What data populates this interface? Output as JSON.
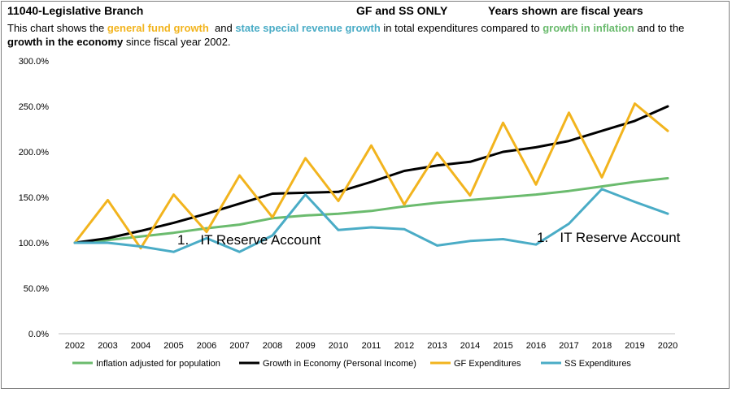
{
  "header": {
    "title": "11040-Legislative Branch",
    "scope": "GF and SS ONLY",
    "note": "Years shown are fiscal years"
  },
  "description": {
    "p1": "This chart shows the ",
    "gf": "general fund growth",
    "p2": "  and ",
    "ss": "state special revenue growth",
    "p3": " in total expenditures compared to ",
    "infl": "growth in inflation",
    "p4": " and to the ",
    "econ": "growth in the economy",
    "p5": " since fiscal year 2002."
  },
  "colors": {
    "gf": "#F2B41E",
    "ss": "#4AACC6",
    "inflation": "#6BBB6E",
    "economy": "#000000"
  },
  "chart_data": {
    "type": "line",
    "categories": [
      "2002",
      "2003",
      "2004",
      "2005",
      "2006",
      "2007",
      "2008",
      "2009",
      "2010",
      "2011",
      "2012",
      "2013",
      "2014",
      "2015",
      "2016",
      "2017",
      "2018",
      "2019",
      "2020"
    ],
    "ylim": [
      0,
      300
    ],
    "yticks": [
      "0.0%",
      "50.0%",
      "100.0%",
      "150.0%",
      "200.0%",
      "250.0%",
      "300.0%"
    ],
    "grid": false,
    "legend_position": "bottom",
    "series": [
      {
        "name": "Inflation adjusted for population",
        "color": "#6BBB6E",
        "values": [
          100,
          103,
          107,
          111,
          116,
          120,
          127,
          130,
          132,
          135,
          140,
          144,
          147,
          150,
          153,
          157,
          162,
          167,
          171
        ]
      },
      {
        "name": "Growth in Economy (Personal Income)",
        "color": "#000000",
        "values": [
          100,
          105,
          113,
          122,
          132,
          143,
          154,
          155,
          156,
          167,
          179,
          185,
          189,
          200,
          205,
          212,
          223,
          234,
          250
        ]
      },
      {
        "name": "GF Expenditures",
        "color": "#F2B41E",
        "values": [
          100,
          147,
          94,
          153,
          112,
          174,
          128,
          193,
          146,
          207,
          142,
          199,
          152,
          232,
          164,
          243,
          172,
          253,
          223
        ]
      },
      {
        "name": "SS Expenditures",
        "color": "#4AACC6",
        "values": [
          100,
          100,
          96,
          90,
          105,
          90,
          108,
          153,
          114,
          117,
          115,
          97,
          102,
          104,
          98,
          121,
          159,
          145,
          132
        ]
      }
    ],
    "annotations": [
      {
        "text": "1.   IT Reserve Account",
        "near": "2007"
      },
      {
        "text": "1.   IT Reserve Account",
        "near": "2018"
      }
    ]
  }
}
